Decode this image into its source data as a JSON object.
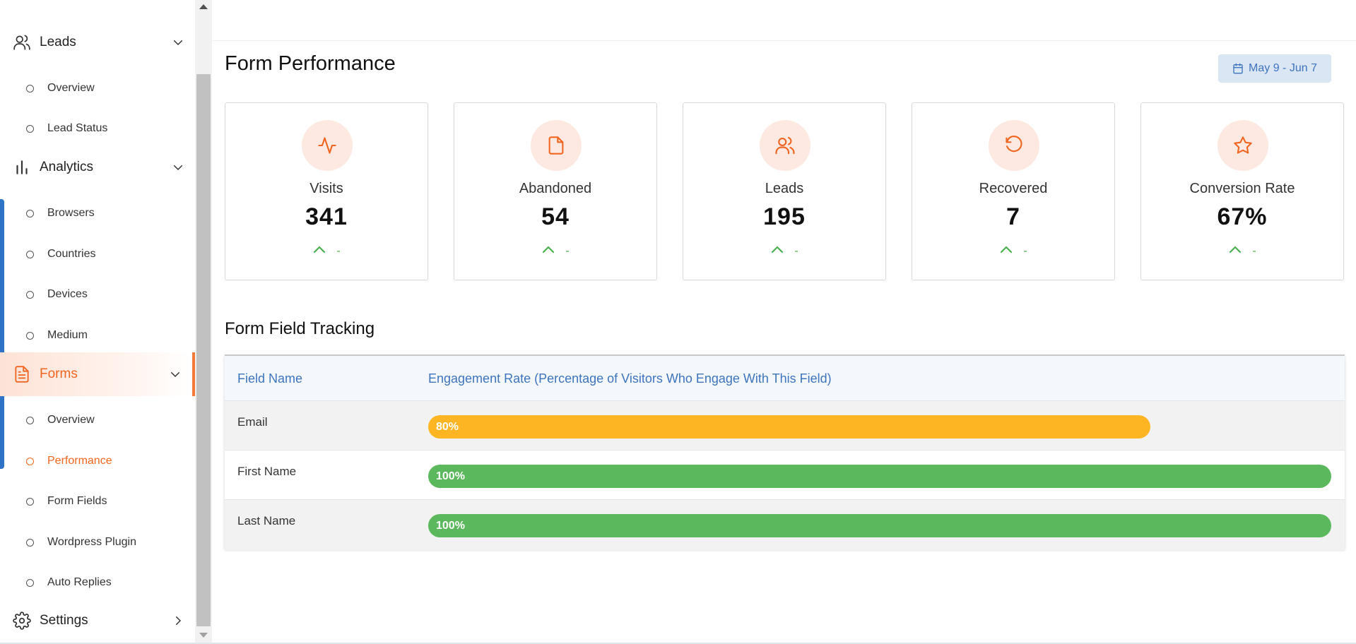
{
  "sidebar": {
    "leads": {
      "label": "Leads",
      "items": [
        {
          "label": "Overview"
        },
        {
          "label": "Lead Status"
        }
      ]
    },
    "analytics": {
      "label": "Analytics",
      "items": [
        {
          "label": "Browsers"
        },
        {
          "label": "Countries"
        },
        {
          "label": "Devices"
        },
        {
          "label": "Medium"
        }
      ]
    },
    "forms": {
      "label": "Forms",
      "items": [
        {
          "label": "Overview"
        },
        {
          "label": "Performance"
        },
        {
          "label": "Form Fields"
        },
        {
          "label": "Wordpress Plugin"
        },
        {
          "label": "Auto Replies"
        }
      ]
    },
    "settings": {
      "label": "Settings"
    }
  },
  "main": {
    "title": "Form Performance",
    "date_range": "May 9 - Jun 7",
    "cards": [
      {
        "icon": "activity-icon",
        "label": "Visits",
        "value": "341",
        "trend": "-"
      },
      {
        "icon": "file-icon",
        "label": "Abandoned",
        "value": "54",
        "trend": "-"
      },
      {
        "icon": "users-icon",
        "label": "Leads",
        "value": "195",
        "trend": "-"
      },
      {
        "icon": "rotate-ccw-icon",
        "label": "Recovered",
        "value": "7",
        "trend": "-"
      },
      {
        "icon": "star-icon",
        "label": "Conversion Rate",
        "value": "67%",
        "trend": "-"
      }
    ],
    "tracking": {
      "title": "Form Field Tracking",
      "columns": [
        "Field Name",
        "Engagement Rate (Percentage of Visitors Who Engage With This Field)"
      ],
      "rows": [
        {
          "field": "Email",
          "rate": 80,
          "rate_label": "80%",
          "color": "#fdb524"
        },
        {
          "field": "First Name",
          "rate": 100,
          "rate_label": "100%",
          "color": "#5cb85c"
        },
        {
          "field": "Last Name",
          "rate": 100,
          "rate_label": "100%",
          "color": "#5cb85c"
        }
      ]
    }
  },
  "colors": {
    "accent": "#f0651f",
    "link_blue": "#3e74bd",
    "trend_green": "#4caf50"
  }
}
